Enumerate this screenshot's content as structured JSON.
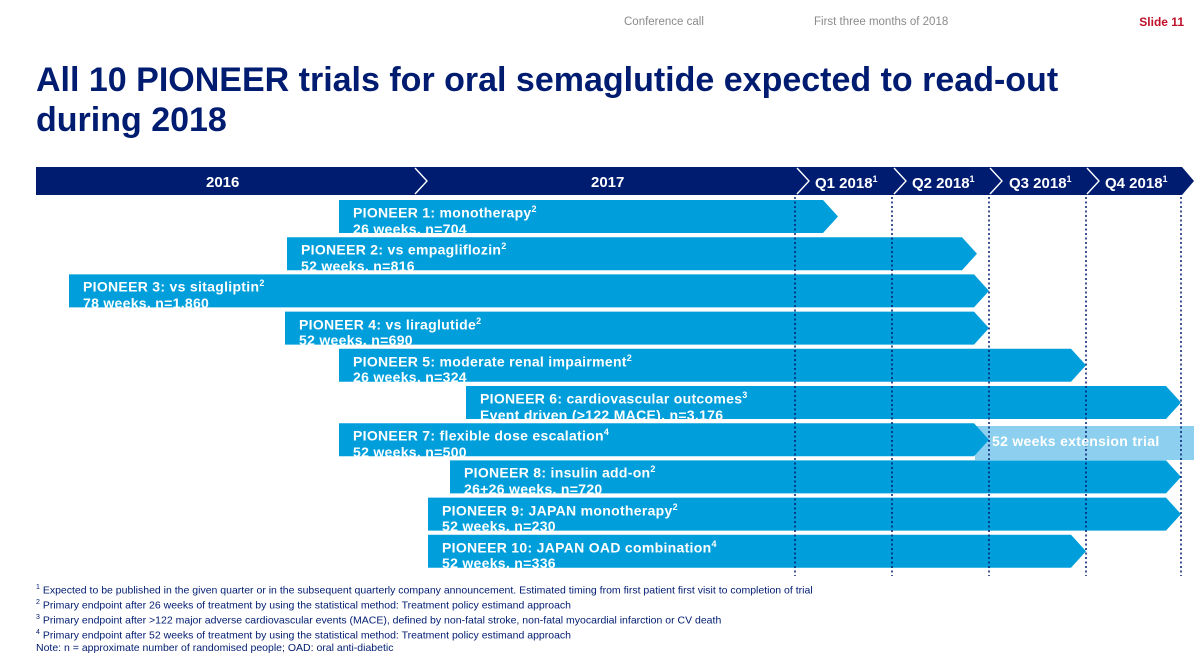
{
  "header": {
    "left": "Conference call",
    "center": "First three months of 2018",
    "slide": "Slide 11"
  },
  "title": "All 10 PIONEER trials for oral semaglutide expected to read-out during 2018",
  "timeline_header": [
    {
      "label": "2016",
      "sup": ""
    },
    {
      "label": "2017",
      "sup": ""
    },
    {
      "label": "Q1 2018",
      "sup": "1"
    },
    {
      "label": "Q2 2018",
      "sup": "1"
    },
    {
      "label": "Q3 2018",
      "sup": "1"
    },
    {
      "label": "Q4 2018",
      "sup": "1"
    }
  ],
  "trials": [
    {
      "name": "PIONEER 1: monotherapy",
      "sup": "2",
      "detail": "26 weeks, n=704"
    },
    {
      "name": "PIONEER 2: vs empagliflozin",
      "sup": "2",
      "detail": "52 weeks, n=816"
    },
    {
      "name": "PIONEER 3: vs sitagliptin",
      "sup": "2",
      "detail": "78 weeks, n=1,860"
    },
    {
      "name": "PIONEER 4: vs liraglutide",
      "sup": "2",
      "detail": "52 weeks, n=690"
    },
    {
      "name": "PIONEER 5: moderate renal impairment",
      "sup": "2",
      "detail": "26 weeks, n=324"
    },
    {
      "name": "PIONEER 6: cardiovascular outcomes",
      "sup": "3",
      "detail": "Event driven (>122 MACE), n=3,176"
    },
    {
      "name": "PIONEER 7: flexible dose escalation",
      "sup": "4",
      "detail": "52 weeks, n=500"
    },
    {
      "name": "PIONEER 8: insulin add-on",
      "sup": "2",
      "detail": "26+26 weeks, n=720"
    },
    {
      "name": "PIONEER 9: JAPAN monotherapy",
      "sup": "2",
      "detail": "52 weeks, n=230"
    },
    {
      "name": "PIONEER 10: JAPAN OAD combination",
      "sup": "4",
      "detail": "52 weeks, n=336"
    }
  ],
  "extension_label": "52 weeks extension trial",
  "footnotes": [
    {
      "sup": "1",
      "text": "Expected to be published in the given quarter or in the subsequent quarterly company announcement. Estimated timing from first patient first visit to completion of trial"
    },
    {
      "sup": "2",
      "text": "Primary endpoint after 26 weeks of treatment by using the statistical method: Treatment policy estimand approach"
    },
    {
      "sup": "3",
      "text": "Primary endpoint after >122 major adverse cardiovascular events (MACE), defined by non-fatal stroke, non-fatal myocardial infarction or CV death"
    },
    {
      "sup": "4",
      "text": "Primary endpoint after 52 weeks of treatment by using the statistical method: Treatment policy estimand approach"
    },
    {
      "sup": "",
      "text": "Note: n = approximate number of randomised people; OAD: oral anti-diabetic"
    }
  ],
  "colors": {
    "navy": "#001c71",
    "bar": "#009fdb",
    "extension": "#8ccfee",
    "slide_number": "#c0102a"
  }
}
